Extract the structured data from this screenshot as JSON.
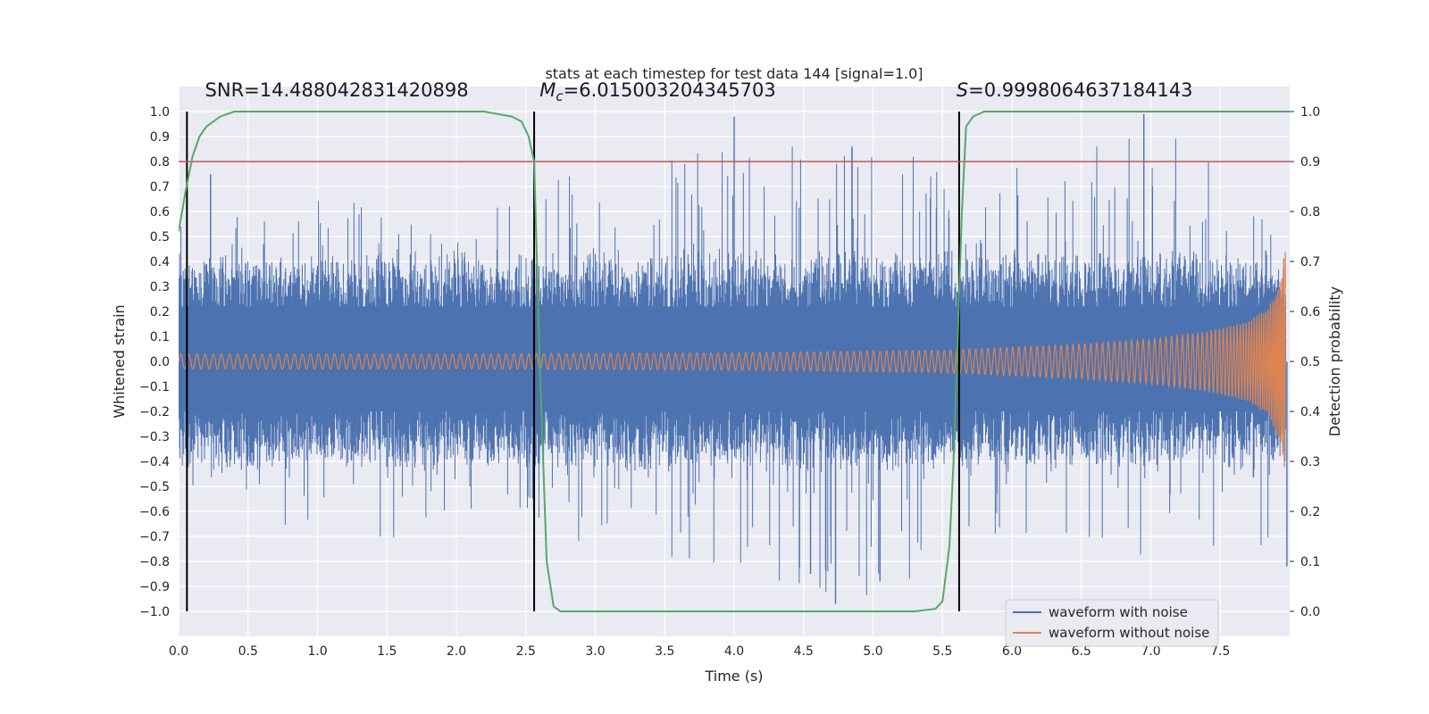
{
  "chart_data": {
    "type": "line",
    "title": "stats at each timestep for test data 144 [signal=1.0]",
    "xlabel": "Time (s)",
    "ylabel": "Whitened strain",
    "y2label": "Detection probability",
    "xlim": [
      0.0,
      8.0
    ],
    "ylim": [
      -1.1,
      1.1
    ],
    "y2lim": [
      -0.05,
      1.05
    ],
    "x_ticks": [
      0.0,
      0.5,
      1.0,
      1.5,
      2.0,
      2.5,
      3.0,
      3.5,
      4.0,
      4.5,
      5.0,
      5.5,
      6.0,
      6.5,
      7.0,
      7.5
    ],
    "x_tick_labels": [
      "0.0",
      "0.5",
      "1.0",
      "1.5",
      "2.0",
      "2.5",
      "3.0",
      "3.5",
      "4.0",
      "4.5",
      "5.0",
      "5.5",
      "6.0",
      "6.5",
      "7.0",
      "7.5"
    ],
    "y_ticks": [
      1.0,
      0.9,
      0.8,
      0.7,
      0.6,
      0.5,
      0.4,
      0.3,
      0.2,
      0.1,
      0.0,
      -0.1,
      -0.2,
      -0.3,
      -0.4,
      -0.5,
      -0.6,
      -0.7,
      -0.8,
      -0.9,
      -1.0
    ],
    "y_tick_labels": [
      "1.0",
      "0.9",
      "0.8",
      "0.7",
      "0.6",
      "0.5",
      "0.4",
      "0.3",
      "0.2",
      "0.1",
      "0.0",
      "−0.1",
      "−0.2",
      "−0.3",
      "−0.4",
      "−0.5",
      "−0.6",
      "−0.7",
      "−0.8",
      "−0.9",
      "−1.0"
    ],
    "y2_ticks": [
      1.0,
      0.9,
      0.8,
      0.7,
      0.6,
      0.5,
      0.4,
      0.3,
      0.2,
      0.1,
      0.0
    ],
    "y2_tick_labels": [
      "1.0",
      "0.9",
      "0.8",
      "0.7",
      "0.6",
      "0.5",
      "0.4",
      "0.3",
      "0.2",
      "0.1",
      "0.0"
    ],
    "grid": true,
    "legend_position": "lower-right",
    "series": [
      {
        "name": "waveform with noise",
        "color": "#4c72b0",
        "axis": "left",
        "envelope": {
          "x": [
            0.0,
            1.0,
            2.0,
            3.0,
            4.0,
            5.0,
            6.0,
            7.0,
            7.8,
            7.97
          ],
          "max": [
            0.55,
            0.68,
            0.78,
            0.75,
            0.97,
            0.85,
            0.78,
            0.97,
            0.72,
            0.45
          ],
          "min": [
            -0.65,
            -0.7,
            -0.72,
            -0.75,
            -0.88,
            -0.95,
            -0.73,
            -0.78,
            -0.75,
            -0.6
          ]
        },
        "spikes": [
          {
            "x": 2.56,
            "y": 0.85
          },
          {
            "x": 4.0,
            "y": 0.98
          },
          {
            "x": 6.95,
            "y": 0.99
          },
          {
            "x": 4.73,
            "y": -0.97
          },
          {
            "x": 5.05,
            "y": -0.88
          },
          {
            "x": 4.55,
            "y": -0.85
          },
          {
            "x": 0.23,
            "y": 0.75
          },
          {
            "x": 7.98,
            "y": -0.82
          }
        ]
      },
      {
        "name": "waveform without noise",
        "color": "#dd8452",
        "axis": "left",
        "envelope": {
          "x": [
            0.0,
            2.0,
            4.0,
            5.5,
            6.5,
            7.0,
            7.4,
            7.7,
            7.85,
            7.93,
            7.97
          ],
          "amplitude": [
            0.03,
            0.03,
            0.035,
            0.045,
            0.07,
            0.09,
            0.12,
            0.16,
            0.22,
            0.32,
            0.45
          ]
        }
      },
      {
        "name": "detection probability",
        "color": "#55a868",
        "axis": "right",
        "x": [
          0.0,
          0.05,
          0.1,
          0.15,
          0.2,
          0.3,
          0.4,
          2.2,
          2.4,
          2.47,
          2.52,
          2.56,
          2.6,
          2.65,
          2.7,
          2.75,
          5.3,
          5.45,
          5.5,
          5.55,
          5.58,
          5.61,
          5.64,
          5.67,
          5.72,
          5.8,
          8.0
        ],
        "y": [
          0.76,
          0.84,
          0.91,
          0.95,
          0.97,
          0.99,
          1.0,
          1.0,
          0.99,
          0.98,
          0.95,
          0.9,
          0.5,
          0.1,
          0.01,
          0.0,
          0.0,
          0.005,
          0.02,
          0.13,
          0.3,
          0.55,
          0.8,
          0.97,
          0.99,
          1.0,
          1.0
        ]
      }
    ],
    "threshold": {
      "value": 0.9,
      "axis": "right",
      "color": "#c44e52"
    },
    "vertical_markers": [
      0.06,
      2.56,
      5.62
    ],
    "annotations": [
      {
        "text": "SNR=14.488042831420898",
        "x": 0.19,
        "y": 1.03
      },
      {
        "prefix": "M",
        "sub": "c",
        "text": "=6.015003204345703",
        "x": 2.6,
        "y": 1.03
      },
      {
        "prefix": "S",
        "text": "=0.9998064637184143",
        "x": 5.6,
        "y": 1.03
      }
    ]
  }
}
